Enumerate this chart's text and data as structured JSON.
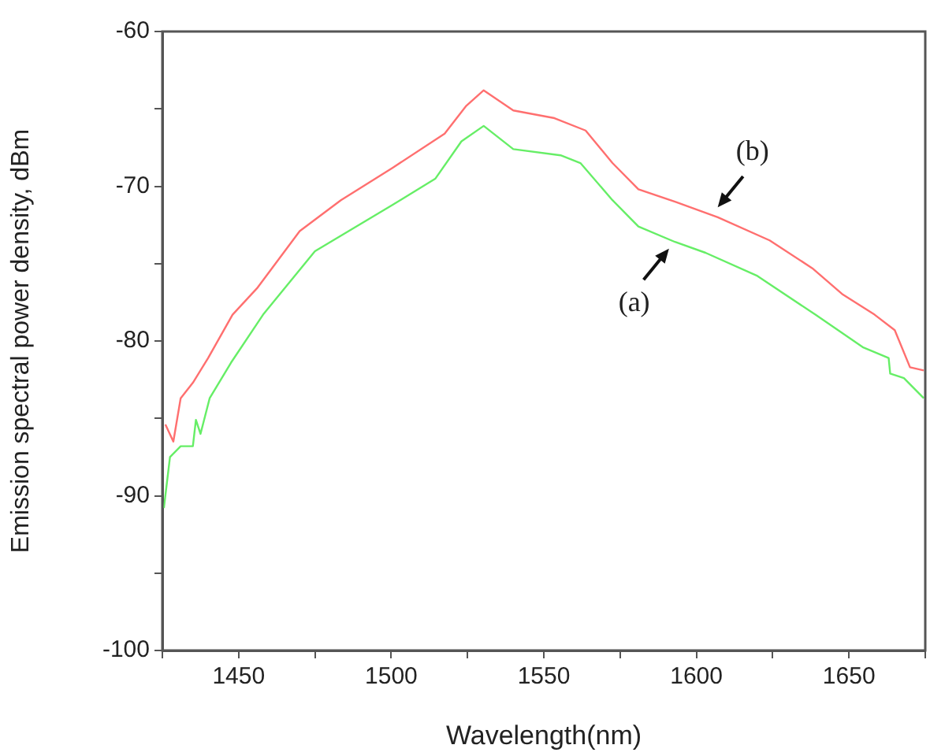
{
  "chart_data": {
    "type": "line",
    "xlabel": "Wavelength(nm)",
    "ylabel": "Emission spectral power density, dBm",
    "xlim": [
      1425,
      1675
    ],
    "ylim": [
      -100,
      -60
    ],
    "xticks": [
      {
        "value": 1425,
        "label": null
      },
      1450,
      {
        "value": 1475,
        "label": null
      },
      1500,
      {
        "value": 1525,
        "label": null
      },
      1550,
      {
        "value": 1575,
        "label": null
      },
      1600,
      {
        "value": 1625,
        "label": null
      },
      1650,
      {
        "value": 1675,
        "label": null
      }
    ],
    "yticks": [
      -100,
      {
        "value": -95,
        "label": null
      },
      -90,
      {
        "value": -85,
        "label": null
      },
      -80,
      {
        "value": -75,
        "label": null
      },
      -70,
      {
        "value": -65,
        "label": null
      },
      -60
    ],
    "marker": "none",
    "line_style": "solid",
    "series": [
      {
        "color": "#ff6f6f",
        "x": [
          1426,
          1428.6,
          1431,
          1435,
          1440,
          1448,
          1456,
          1470,
          1483.5,
          1500.5,
          1517.5,
          1524.6,
          1530.3,
          1540,
          1553.5,
          1563.7,
          1572.5,
          1581,
          1593,
          1607,
          1624,
          1638,
          1648,
          1658.4,
          1665,
          1670,
          1674.5
        ],
        "values": [
          -85.4,
          -86.5,
          -83.7,
          -82.7,
          -81.1,
          -78.3,
          -76.6,
          -72.9,
          -70.9,
          -68.8,
          -66.6,
          -64.8,
          -63.8,
          -65.1,
          -65.6,
          -66.4,
          -68.5,
          -70.2,
          -71.0,
          -72.0,
          -73.5,
          -75.3,
          -77.0,
          -78.3,
          -79.3,
          -81.7,
          -81.9
        ]
      },
      {
        "color": "#66ee66",
        "x": [
          1425.5,
          1427.5,
          1431,
          1435,
          1436,
          1437.5,
          1440.5,
          1447.5,
          1458,
          1475,
          1500.5,
          1514.5,
          1523,
          1530.3,
          1540,
          1555.5,
          1562,
          1572.5,
          1581,
          1593,
          1603,
          1620,
          1639,
          1654.5,
          1663,
          1663.5,
          1668,
          1674.5
        ],
        "values": [
          -90.8,
          -87.5,
          -86.8,
          -86.8,
          -85.1,
          -86.0,
          -83.7,
          -81.4,
          -78.3,
          -74.2,
          -71.2,
          -69.5,
          -67.1,
          -66.1,
          -67.6,
          -68.0,
          -68.5,
          -70.9,
          -72.6,
          -73.6,
          -74.3,
          -75.8,
          -78.3,
          -80.4,
          -81.1,
          -82.1,
          -82.4,
          -83.7
        ]
      }
    ],
    "annotations": [
      {
        "text": "(b)",
        "x": 1606,
        "y": -71.6
      },
      {
        "text": "(a)",
        "x": 1592,
        "y": -73.8
      }
    ]
  }
}
